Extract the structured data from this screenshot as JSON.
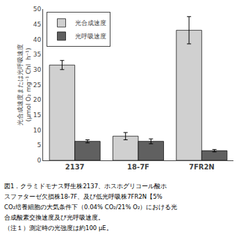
{
  "chart_data": {
    "type": "bar",
    "categories": [
      "2137",
      "18-7F",
      "7FR2N"
    ],
    "series": [
      {
        "name": "光合成速度",
        "color": "#d0d0d0",
        "values": [
          31.5,
          8.0,
          43.0
        ],
        "errors": [
          1.5,
          1.2,
          4.5
        ]
      },
      {
        "name": "光呼吸速度",
        "color": "#606060",
        "values": [
          6.3,
          6.3,
          3.2
        ],
        "errors": [
          0.5,
          0.8,
          0.4
        ]
      }
    ],
    "ylabel": "光合成速度または光呼吸速度\n(μmol O₂ mg⁻¹ Chl  h⁻¹)",
    "ylim": [
      0,
      50
    ],
    "yticks": [
      0,
      5,
      10,
      15,
      20,
      25,
      30,
      35,
      40,
      45,
      50
    ],
    "legend": "upper left",
    "grid": false,
    "annotations": [
      "図1．クラミドモナス野生株2137、ホスホグリコール酸ホ",
      "スファターゼ欠損株18-7F、及び低光呼吸株7FR2N【5%",
      "CO₂培養細胞の大気条件下（0.04% CO₂/21% O₂）における光",
      "合成酸素交換速度及び光呼吸速度。",
      "（注１）測定時の光強度は約100 μE。"
    ]
  }
}
